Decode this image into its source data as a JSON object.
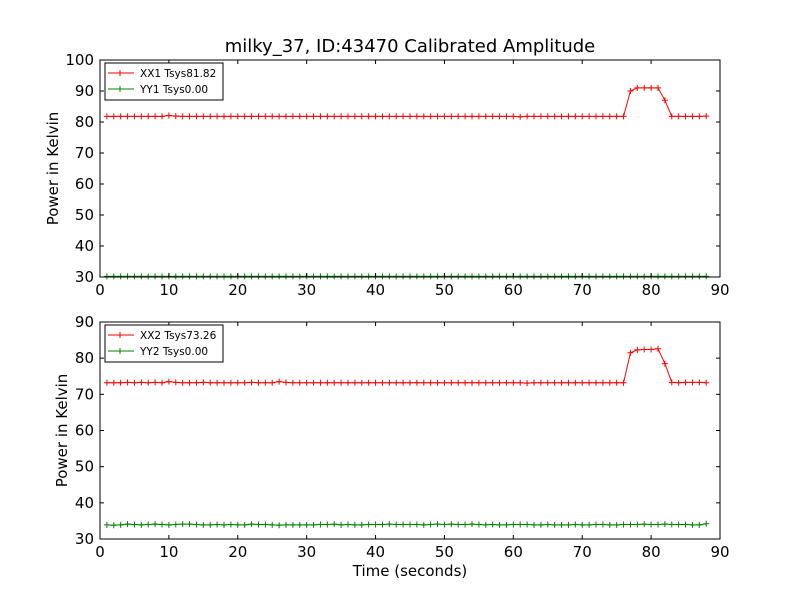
{
  "chart_data": [
    {
      "type": "line",
      "title": "milky_37, ID:43470 Calibrated Amplitude",
      "xlabel": "",
      "ylabel": "Power in Kelvin",
      "xlim": [
        0,
        90
      ],
      "ylim": [
        30,
        100
      ],
      "xticks": [
        0,
        10,
        20,
        30,
        40,
        50,
        60,
        70,
        80,
        90
      ],
      "yticks": [
        30,
        40,
        50,
        60,
        70,
        80,
        90,
        100
      ],
      "grid": false,
      "legend_position": "top-left",
      "x": [
        1,
        2,
        3,
        4,
        5,
        6,
        7,
        8,
        9,
        10,
        11,
        12,
        13,
        14,
        15,
        16,
        17,
        18,
        19,
        20,
        21,
        22,
        23,
        24,
        25,
        26,
        27,
        28,
        29,
        30,
        31,
        32,
        33,
        34,
        35,
        36,
        37,
        38,
        39,
        40,
        41,
        42,
        43,
        44,
        45,
        46,
        47,
        48,
        49,
        50,
        51,
        52,
        53,
        54,
        55,
        56,
        57,
        58,
        59,
        60,
        61,
        62,
        63,
        64,
        65,
        66,
        67,
        68,
        69,
        70,
        71,
        72,
        73,
        74,
        75,
        76,
        77,
        78,
        79,
        80,
        81,
        82,
        83,
        84,
        85,
        86,
        87,
        88
      ],
      "series": [
        {
          "name": "XX1 Tsys81.82",
          "color": "#ff0000",
          "values": [
            81.8,
            81.8,
            81.8,
            81.8,
            81.8,
            81.8,
            81.8,
            81.8,
            81.8,
            82.1,
            81.9,
            81.8,
            81.8,
            81.8,
            81.8,
            81.8,
            81.8,
            81.8,
            81.8,
            81.8,
            81.8,
            81.8,
            81.8,
            81.8,
            81.8,
            81.8,
            81.8,
            81.8,
            81.8,
            81.8,
            81.8,
            81.8,
            81.8,
            81.8,
            81.8,
            81.8,
            81.8,
            81.8,
            81.8,
            81.8,
            81.8,
            81.8,
            81.8,
            81.8,
            81.8,
            81.8,
            81.8,
            81.8,
            81.8,
            81.8,
            81.8,
            81.8,
            81.8,
            81.8,
            81.8,
            81.8,
            81.8,
            81.8,
            81.8,
            81.8,
            81.7,
            81.8,
            81.8,
            81.8,
            81.8,
            81.8,
            81.8,
            81.8,
            81.8,
            81.8,
            81.8,
            81.8,
            81.8,
            81.8,
            81.8,
            81.8,
            90.0,
            91.0,
            91.0,
            91.0,
            91.0,
            87.0,
            81.8,
            81.8,
            81.8,
            81.8,
            81.8,
            81.9
          ]
        },
        {
          "name": "YY1 Tsys0.00",
          "color": "#008000",
          "values": [
            30.2,
            30.2,
            30.2,
            30.2,
            30.2,
            30.2,
            30.2,
            30.2,
            30.2,
            30.2,
            30.2,
            30.2,
            30.2,
            30.2,
            30.2,
            30.2,
            30.2,
            30.2,
            30.2,
            30.2,
            30.2,
            30.2,
            30.2,
            30.2,
            30.2,
            30.2,
            30.2,
            30.2,
            30.2,
            30.2,
            30.2,
            30.2,
            30.2,
            30.2,
            30.2,
            30.2,
            30.2,
            30.2,
            30.2,
            30.2,
            30.2,
            30.2,
            30.2,
            30.2,
            30.2,
            30.2,
            30.2,
            30.2,
            30.2,
            30.2,
            30.2,
            30.2,
            30.2,
            30.2,
            30.2,
            30.2,
            30.2,
            30.2,
            30.2,
            30.2,
            30.2,
            30.2,
            30.2,
            30.2,
            30.2,
            30.2,
            30.2,
            30.2,
            30.2,
            30.2,
            30.2,
            30.2,
            30.2,
            30.2,
            30.2,
            30.2,
            30.2,
            30.2,
            30.2,
            30.2,
            30.2,
            30.2,
            30.2,
            30.2,
            30.2,
            30.2,
            30.2,
            30.2
          ]
        }
      ]
    },
    {
      "type": "line",
      "title": "",
      "xlabel": "Time (seconds)",
      "ylabel": "Power in Kelvin",
      "xlim": [
        0,
        90
      ],
      "ylim": [
        30,
        90
      ],
      "xticks": [
        0,
        10,
        20,
        30,
        40,
        50,
        60,
        70,
        80,
        90
      ],
      "yticks": [
        30,
        40,
        50,
        60,
        70,
        80,
        90
      ],
      "grid": false,
      "legend_position": "top-left",
      "x": [
        1,
        2,
        3,
        4,
        5,
        6,
        7,
        8,
        9,
        10,
        11,
        12,
        13,
        14,
        15,
        16,
        17,
        18,
        19,
        20,
        21,
        22,
        23,
        24,
        25,
        26,
        27,
        28,
        29,
        30,
        31,
        32,
        33,
        34,
        35,
        36,
        37,
        38,
        39,
        40,
        41,
        42,
        43,
        44,
        45,
        46,
        47,
        48,
        49,
        50,
        51,
        52,
        53,
        54,
        55,
        56,
        57,
        58,
        59,
        60,
        61,
        62,
        63,
        64,
        65,
        66,
        67,
        68,
        69,
        70,
        71,
        72,
        73,
        74,
        75,
        76,
        77,
        78,
        79,
        80,
        81,
        82,
        83,
        84,
        85,
        86,
        87,
        88
      ],
      "series": [
        {
          "name": "XX2 Tsys73.26",
          "color": "#ff0000",
          "values": [
            73.2,
            73.2,
            73.2,
            73.3,
            73.2,
            73.3,
            73.2,
            73.3,
            73.2,
            73.5,
            73.3,
            73.2,
            73.2,
            73.2,
            73.3,
            73.2,
            73.2,
            73.2,
            73.2,
            73.2,
            73.2,
            73.3,
            73.2,
            73.2,
            73.2,
            73.5,
            73.3,
            73.2,
            73.2,
            73.2,
            73.2,
            73.2,
            73.2,
            73.2,
            73.2,
            73.2,
            73.2,
            73.2,
            73.2,
            73.2,
            73.2,
            73.2,
            73.2,
            73.2,
            73.2,
            73.2,
            73.2,
            73.2,
            73.2,
            73.2,
            73.2,
            73.2,
            73.2,
            73.2,
            73.2,
            73.2,
            73.2,
            73.2,
            73.2,
            73.2,
            73.2,
            73.1,
            73.2,
            73.2,
            73.2,
            73.2,
            73.2,
            73.2,
            73.2,
            73.2,
            73.2,
            73.2,
            73.2,
            73.2,
            73.2,
            73.2,
            81.5,
            82.3,
            82.4,
            82.4,
            82.6,
            78.5,
            73.3,
            73.2,
            73.3,
            73.3,
            73.3,
            73.2
          ]
        },
        {
          "name": "YY2 Tsys0.00",
          "color": "#008000",
          "values": [
            33.9,
            33.8,
            33.9,
            34.1,
            34.0,
            33.9,
            34.0,
            34.1,
            34.0,
            33.9,
            34.0,
            34.1,
            34.1,
            34.0,
            33.9,
            33.9,
            34.0,
            33.9,
            34.0,
            33.9,
            33.9,
            34.1,
            34.0,
            34.0,
            33.9,
            33.8,
            33.9,
            33.9,
            33.9,
            33.9,
            33.9,
            34.0,
            34.0,
            34.1,
            33.9,
            34.0,
            33.9,
            33.9,
            34.0,
            34.0,
            34.0,
            34.1,
            34.0,
            34.0,
            34.0,
            34.0,
            33.9,
            34.0,
            34.1,
            34.0,
            34.1,
            34.0,
            34.0,
            34.1,
            34.0,
            33.9,
            34.0,
            33.9,
            33.9,
            34.0,
            34.0,
            34.0,
            33.9,
            33.9,
            34.0,
            33.9,
            33.9,
            33.9,
            34.0,
            33.9,
            33.9,
            34.0,
            34.0,
            33.9,
            33.9,
            34.0,
            34.0,
            34.0,
            34.1,
            34.0,
            34.0,
            34.1,
            34.0,
            34.0,
            34.0,
            33.9,
            33.9,
            34.2
          ]
        }
      ]
    }
  ]
}
